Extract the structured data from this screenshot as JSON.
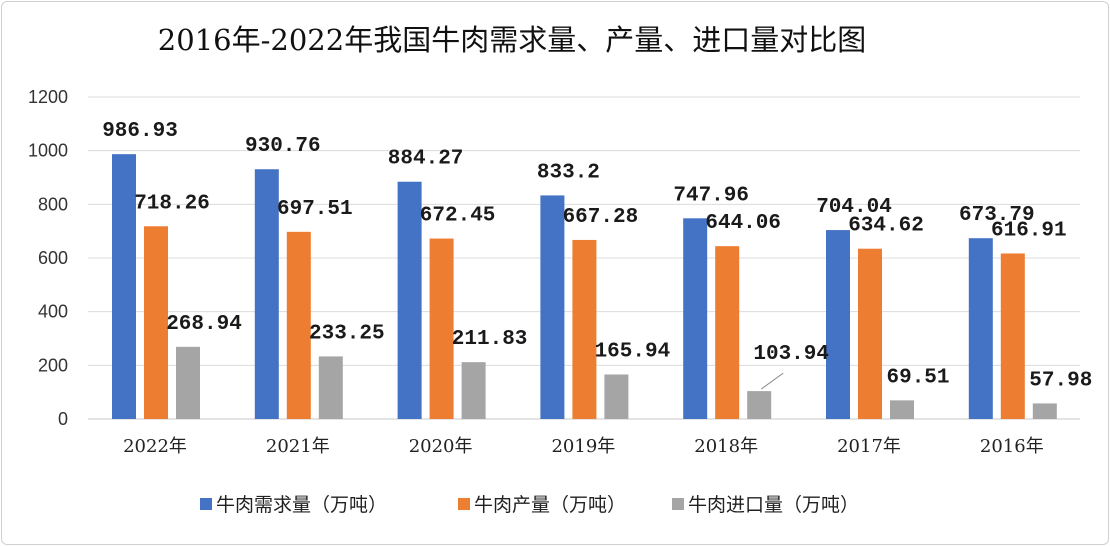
{
  "chart_data": {
    "type": "bar",
    "title": "2016年-2022年我国牛肉需求量、产量、进口量对比图",
    "categories": [
      "2022年",
      "2021年",
      "2020年",
      "2019年",
      "2018年",
      "2017年",
      "2016年"
    ],
    "series": [
      {
        "name": "牛肉需求量（万吨）",
        "color": "#4472C4",
        "values": [
          986.93,
          930.76,
          884.27,
          833.2,
          747.96,
          704.04,
          673.79
        ]
      },
      {
        "name": "牛肉产量（万吨）",
        "color": "#ED7D31",
        "values": [
          718.26,
          697.51,
          672.45,
          667.28,
          644.06,
          634.62,
          616.91
        ]
      },
      {
        "name": "牛肉进口量（万吨）",
        "color": "#A5A5A5",
        "values": [
          268.94,
          233.25,
          211.83,
          165.94,
          103.94,
          69.51,
          57.98
        ]
      }
    ],
    "ylim": [
      0,
      1200
    ],
    "yticks": [
      0,
      200,
      400,
      600,
      800,
      1000,
      1200
    ],
    "grid": true,
    "legend": "bottom",
    "xlabel": "",
    "ylabel": ""
  }
}
